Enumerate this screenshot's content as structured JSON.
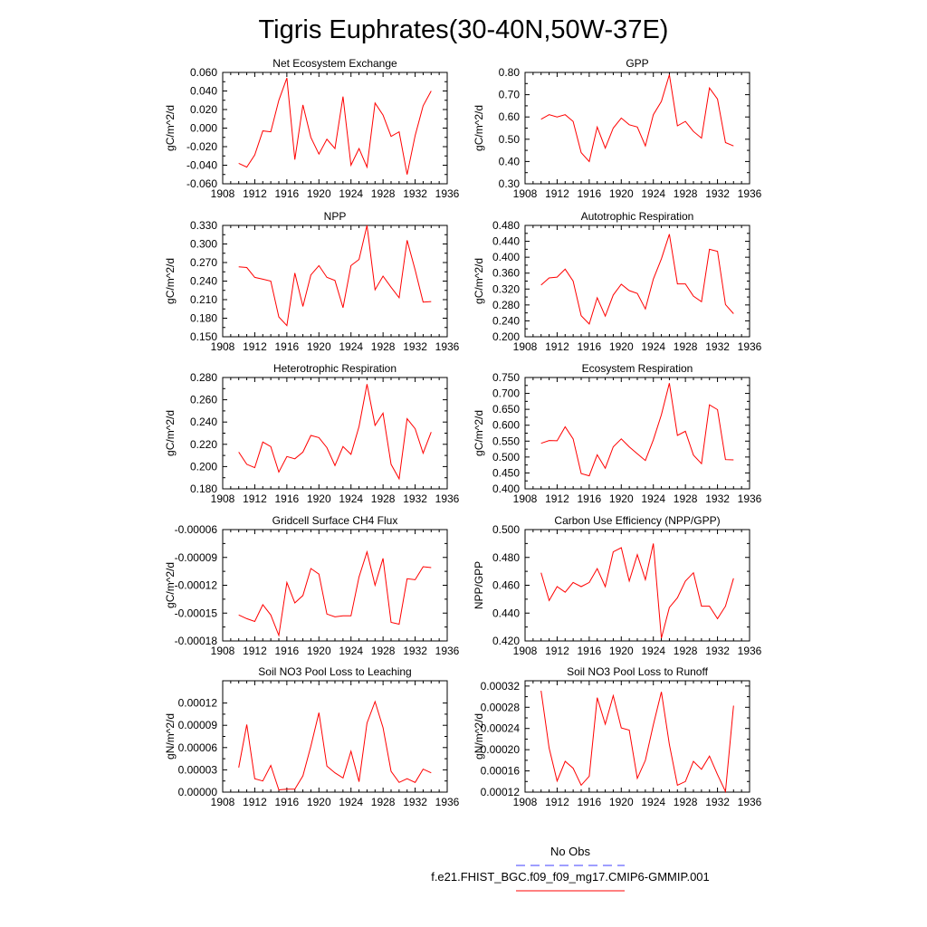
{
  "figure_title": "Tigris Euphrates(30-40N,50W-37E)",
  "legend": [
    {
      "label": "No Obs",
      "color": "#6666ff",
      "dash": true
    },
    {
      "label": "f.e21.FHIST_BGC.f09_f09_mg17.CMIP6-GMMIP.001",
      "color": "#ff0000",
      "dash": false
    }
  ],
  "chart_data": [
    {
      "type": "line",
      "title": "Net Ecosystem Exchange",
      "ylabel": "gC/m^2/d",
      "x": [
        1910,
        1911,
        1912,
        1913,
        1914,
        1915,
        1916,
        1917,
        1918,
        1919,
        1920,
        1921,
        1922,
        1923,
        1924,
        1925,
        1926,
        1927,
        1928,
        1929,
        1930,
        1931,
        1932,
        1933,
        1934
      ],
      "values": [
        -0.038,
        -0.042,
        -0.029,
        -0.003,
        -0.004,
        0.03,
        0.054,
        -0.034,
        0.025,
        -0.01,
        -0.028,
        -0.012,
        -0.022,
        0.034,
        -0.04,
        -0.022,
        -0.042,
        0.027,
        0.014,
        -0.009,
        -0.004,
        -0.05,
        -0.008,
        0.024,
        0.04
      ],
      "xlim": [
        1908,
        1936
      ],
      "ylim": [
        -0.06,
        0.06
      ],
      "yticks": [
        -0.06,
        -0.04,
        -0.02,
        0,
        0.02,
        0.04,
        0.06
      ],
      "ytick_labels": [
        "-0.060",
        "-0.040",
        "-0.020",
        "0.000",
        "0.020",
        "0.040",
        "0.060"
      ],
      "xticks": [
        1908,
        1912,
        1916,
        1920,
        1924,
        1928,
        1932,
        1936
      ],
      "xtick_labels": [
        "1908",
        "1912",
        "1916",
        "1920",
        "1924",
        "1928",
        "1932",
        "1936"
      ]
    },
    {
      "type": "line",
      "title": "GPP",
      "ylabel": "gC/m^2/d",
      "x": [
        1910,
        1911,
        1912,
        1913,
        1914,
        1915,
        1916,
        1917,
        1918,
        1919,
        1920,
        1921,
        1922,
        1923,
        1924,
        1925,
        1926,
        1927,
        1928,
        1929,
        1930,
        1931,
        1932,
        1933,
        1934
      ],
      "values": [
        0.59,
        0.61,
        0.6,
        0.61,
        0.58,
        0.44,
        0.4,
        0.555,
        0.46,
        0.55,
        0.595,
        0.565,
        0.555,
        0.47,
        0.61,
        0.67,
        0.79,
        0.56,
        0.58,
        0.535,
        0.505,
        0.73,
        0.68,
        0.485,
        0.47
      ],
      "xlim": [
        1908,
        1936
      ],
      "ylim": [
        0.3,
        0.8
      ],
      "yticks": [
        0.3,
        0.4,
        0.5,
        0.6,
        0.7,
        0.8
      ],
      "ytick_labels": [
        "0.30",
        "0.40",
        "0.50",
        "0.60",
        "0.70",
        "0.80"
      ],
      "xticks": [
        1908,
        1912,
        1916,
        1920,
        1924,
        1928,
        1932,
        1936
      ],
      "xtick_labels": [
        "1908",
        "1912",
        "1916",
        "1920",
        "1924",
        "1928",
        "1932",
        "1936"
      ]
    },
    {
      "type": "line",
      "title": "NPP",
      "ylabel": "gC/m^2/d",
      "x": [
        1910,
        1911,
        1912,
        1913,
        1914,
        1915,
        1916,
        1917,
        1918,
        1919,
        1920,
        1921,
        1922,
        1923,
        1924,
        1925,
        1926,
        1927,
        1928,
        1929,
        1930,
        1931,
        1932,
        1933,
        1934
      ],
      "values": [
        0.263,
        0.262,
        0.246,
        0.243,
        0.24,
        0.182,
        0.168,
        0.253,
        0.199,
        0.25,
        0.265,
        0.246,
        0.241,
        0.197,
        0.265,
        0.275,
        0.33,
        0.226,
        0.248,
        0.23,
        0.213,
        0.306,
        0.258,
        0.206,
        0.207
      ],
      "xlim": [
        1908,
        1936
      ],
      "ylim": [
        0.15,
        0.33
      ],
      "yticks": [
        0.15,
        0.18,
        0.21,
        0.24,
        0.27,
        0.3,
        0.33
      ],
      "ytick_labels": [
        "0.150",
        "0.180",
        "0.210",
        "0.240",
        "0.270",
        "0.300",
        "0.330"
      ],
      "xticks": [
        1908,
        1912,
        1916,
        1920,
        1924,
        1928,
        1932,
        1936
      ],
      "xtick_labels": [
        "1908",
        "1912",
        "1916",
        "1920",
        "1924",
        "1928",
        "1932",
        "1936"
      ]
    },
    {
      "type": "line",
      "title": "Autotrophic Respiration",
      "ylabel": "gC/m^2/d",
      "x": [
        1910,
        1911,
        1912,
        1913,
        1914,
        1915,
        1916,
        1917,
        1918,
        1919,
        1920,
        1921,
        1922,
        1923,
        1924,
        1925,
        1926,
        1927,
        1928,
        1929,
        1930,
        1931,
        1932,
        1933,
        1934
      ],
      "values": [
        0.33,
        0.348,
        0.35,
        0.37,
        0.34,
        0.253,
        0.232,
        0.298,
        0.252,
        0.305,
        0.332,
        0.316,
        0.309,
        0.27,
        0.345,
        0.396,
        0.458,
        0.333,
        0.333,
        0.302,
        0.288,
        0.42,
        0.415,
        0.281,
        0.258
      ],
      "xlim": [
        1908,
        1936
      ],
      "ylim": [
        0.2,
        0.48
      ],
      "yticks": [
        0.2,
        0.24,
        0.28,
        0.32,
        0.36,
        0.4,
        0.44,
        0.48
      ],
      "ytick_labels": [
        "0.200",
        "0.240",
        "0.280",
        "0.320",
        "0.360",
        "0.400",
        "0.440",
        "0.480"
      ],
      "xticks": [
        1908,
        1912,
        1916,
        1920,
        1924,
        1928,
        1932,
        1936
      ],
      "xtick_labels": [
        "1908",
        "1912",
        "1916",
        "1920",
        "1924",
        "1928",
        "1932",
        "1936"
      ]
    },
    {
      "type": "line",
      "title": "Heterotrophic Respiration",
      "ylabel": "gC/m^2/d",
      "x": [
        1910,
        1911,
        1912,
        1913,
        1914,
        1915,
        1916,
        1917,
        1918,
        1919,
        1920,
        1921,
        1922,
        1923,
        1924,
        1925,
        1926,
        1927,
        1928,
        1929,
        1930,
        1931,
        1932,
        1933,
        1934
      ],
      "values": [
        0.213,
        0.202,
        0.199,
        0.222,
        0.218,
        0.195,
        0.209,
        0.207,
        0.213,
        0.228,
        0.226,
        0.217,
        0.201,
        0.218,
        0.211,
        0.236,
        0.274,
        0.237,
        0.248,
        0.202,
        0.189,
        0.243,
        0.234,
        0.212,
        0.231
      ],
      "xlim": [
        1908,
        1936
      ],
      "ylim": [
        0.18,
        0.28
      ],
      "yticks": [
        0.18,
        0.2,
        0.22,
        0.24,
        0.26,
        0.28
      ],
      "ytick_labels": [
        "0.180",
        "0.200",
        "0.220",
        "0.240",
        "0.260",
        "0.280"
      ],
      "xticks": [
        1908,
        1912,
        1916,
        1920,
        1924,
        1928,
        1932,
        1936
      ],
      "xtick_labels": [
        "1908",
        "1912",
        "1916",
        "1920",
        "1924",
        "1928",
        "1932",
        "1936"
      ]
    },
    {
      "type": "line",
      "title": "Ecosystem Respiration",
      "ylabel": "gC/m^2/d",
      "x": [
        1910,
        1911,
        1912,
        1913,
        1914,
        1915,
        1916,
        1917,
        1918,
        1919,
        1920,
        1921,
        1922,
        1923,
        1924,
        1925,
        1926,
        1927,
        1928,
        1929,
        1930,
        1931,
        1932,
        1933,
        1934
      ],
      "values": [
        0.543,
        0.552,
        0.551,
        0.595,
        0.557,
        0.448,
        0.441,
        0.507,
        0.465,
        0.532,
        0.557,
        0.532,
        0.51,
        0.489,
        0.554,
        0.633,
        0.732,
        0.568,
        0.581,
        0.506,
        0.479,
        0.664,
        0.649,
        0.492,
        0.491
      ],
      "xlim": [
        1908,
        1936
      ],
      "ylim": [
        0.4,
        0.75
      ],
      "yticks": [
        0.4,
        0.45,
        0.5,
        0.55,
        0.6,
        0.65,
        0.7,
        0.75
      ],
      "ytick_labels": [
        "0.400",
        "0.450",
        "0.500",
        "0.550",
        "0.600",
        "0.650",
        "0.700",
        "0.750"
      ],
      "xticks": [
        1908,
        1912,
        1916,
        1920,
        1924,
        1928,
        1932,
        1936
      ],
      "xtick_labels": [
        "1908",
        "1912",
        "1916",
        "1920",
        "1924",
        "1928",
        "1932",
        "1936"
      ]
    },
    {
      "type": "line",
      "title": "Gridcell Surface CH4 Flux",
      "ylabel": "gC/m^2/d",
      "x": [
        1910,
        1911,
        1912,
        1913,
        1914,
        1915,
        1916,
        1917,
        1918,
        1919,
        1920,
        1921,
        1922,
        1923,
        1924,
        1925,
        1926,
        1927,
        1928,
        1929,
        1930,
        1931,
        1932,
        1933,
        1934
      ],
      "values": [
        -0.000152,
        -0.000156,
        -0.000159,
        -0.000141,
        -0.000152,
        -0.000174,
        -0.000117,
        -0.000139,
        -0.000131,
        -0.000102,
        -0.000108,
        -0.000151,
        -0.000154,
        -0.000153,
        -0.000153,
        -0.000111,
        -8.4e-05,
        -0.00012,
        -9.1e-05,
        -0.00016,
        -0.000162,
        -0.000113,
        -0.000114,
        -0.0001,
        -0.000101
      ],
      "xlim": [
        1908,
        1936
      ],
      "ylim": [
        -0.00018,
        -6e-05
      ],
      "yticks": [
        -0.00018,
        -0.00015,
        -0.00012,
        -9e-05,
        -6e-05
      ],
      "ytick_labels": [
        "-0.00018",
        "-0.00015",
        "-0.00012",
        "-0.00009",
        "-0.00006"
      ],
      "xticks": [
        1908,
        1912,
        1916,
        1920,
        1924,
        1928,
        1932,
        1936
      ],
      "xtick_labels": [
        "1908",
        "1912",
        "1916",
        "1920",
        "1924",
        "1928",
        "1932",
        "1936"
      ]
    },
    {
      "type": "line",
      "title": "Carbon Use Efficiency (NPP/GPP)",
      "ylabel": "NPP/GPP",
      "x": [
        1910,
        1911,
        1912,
        1913,
        1914,
        1915,
        1916,
        1917,
        1918,
        1919,
        1920,
        1921,
        1922,
        1923,
        1924,
        1925,
        1926,
        1927,
        1928,
        1929,
        1930,
        1931,
        1932,
        1933,
        1934
      ],
      "values": [
        0.469,
        0.449,
        0.459,
        0.455,
        0.462,
        0.459,
        0.462,
        0.472,
        0.459,
        0.484,
        0.487,
        0.463,
        0.482,
        0.464,
        0.49,
        0.422,
        0.444,
        0.451,
        0.463,
        0.469,
        0.445,
        0.445,
        0.436,
        0.445,
        0.465
      ],
      "xlim": [
        1908,
        1936
      ],
      "ylim": [
        0.42,
        0.5
      ],
      "yticks": [
        0.42,
        0.44,
        0.46,
        0.48,
        0.5
      ],
      "ytick_labels": [
        "0.420",
        "0.440",
        "0.460",
        "0.480",
        "0.500"
      ],
      "xticks": [
        1908,
        1912,
        1916,
        1920,
        1924,
        1928,
        1932,
        1936
      ],
      "xtick_labels": [
        "1908",
        "1912",
        "1916",
        "1920",
        "1924",
        "1928",
        "1932",
        "1936"
      ]
    },
    {
      "type": "line",
      "title": "Soil NO3 Pool Loss to Leaching",
      "ylabel": "gN/m^2/d",
      "x": [
        1910,
        1911,
        1912,
        1913,
        1914,
        1915,
        1916,
        1917,
        1918,
        1919,
        1920,
        1921,
        1922,
        1923,
        1924,
        1925,
        1926,
        1927,
        1928,
        1929,
        1930,
        1931,
        1932,
        1933,
        1934
      ],
      "values": [
        3.3e-05,
        9.1e-05,
        1.8e-05,
        1.5e-05,
        3.6e-05,
        3e-06,
        4e-06,
        4e-06,
        2.2e-05,
        6.2e-05,
        0.000107,
        3.5e-05,
        2.6e-05,
        1.9e-05,
        5.5e-05,
        1.4e-05,
        9.3e-05,
        0.000122,
        8.7e-05,
        2.8e-05,
        1.3e-05,
        1.8e-05,
        1.3e-05,
        3.1e-05,
        2.6e-05
      ],
      "xlim": [
        1908,
        1936
      ],
      "ylim": [
        0,
        0.00015
      ],
      "yticks": [
        0,
        3e-05,
        6e-05,
        9e-05,
        0.00012
      ],
      "ytick_labels": [
        "0.00000",
        "0.00003",
        "0.00006",
        "0.00009",
        "0.00012"
      ],
      "xticks": [
        1908,
        1912,
        1916,
        1920,
        1924,
        1928,
        1932,
        1936
      ],
      "xtick_labels": [
        "1908",
        "1912",
        "1916",
        "1920",
        "1924",
        "1928",
        "1932",
        "1936"
      ]
    },
    {
      "type": "line",
      "title": "Soil NO3 Pool Loss to Runoff",
      "ylabel": "gN/m^2/d",
      "x": [
        1910,
        1911,
        1912,
        1913,
        1914,
        1915,
        1916,
        1917,
        1918,
        1919,
        1920,
        1921,
        1922,
        1923,
        1924,
        1925,
        1926,
        1927,
        1928,
        1929,
        1930,
        1931,
        1932,
        1933,
        1934
      ],
      "values": [
        0.000311,
        0.000203,
        0.000141,
        0.000178,
        0.000165,
        0.000133,
        0.00015,
        0.000298,
        0.000248,
        0.000302,
        0.000241,
        0.000237,
        0.000146,
        0.00018,
        0.000247,
        0.000309,
        0.00021,
        0.000133,
        0.00014,
        0.000178,
        0.000163,
        0.000188,
        0.000153,
        0.000121,
        0.000283
      ],
      "xlim": [
        1908,
        1936
      ],
      "ylim": [
        0.00012,
        0.00033
      ],
      "yticks": [
        0.00012,
        0.00016,
        0.0002,
        0.00024,
        0.00028,
        0.00032
      ],
      "ytick_labels": [
        "0.00012",
        "0.00016",
        "0.00020",
        "0.00024",
        "0.00028",
        "0.00032"
      ],
      "xticks": [
        1908,
        1912,
        1916,
        1920,
        1924,
        1928,
        1932,
        1936
      ],
      "xtick_labels": [
        "1908",
        "1912",
        "1916",
        "1920",
        "1924",
        "1928",
        "1932",
        "1936"
      ]
    }
  ]
}
